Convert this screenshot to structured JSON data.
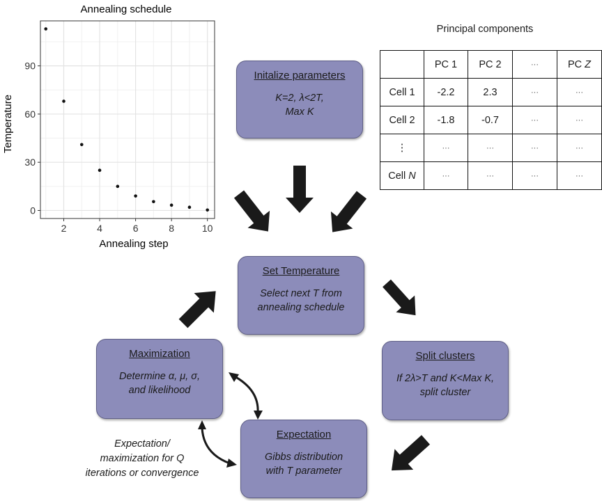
{
  "chart_data": {
    "type": "scatter",
    "title": "Annealing schedule",
    "xlabel": "Annealing step",
    "ylabel": "Temperature",
    "x": [
      1,
      2,
      3,
      4,
      5,
      6,
      7,
      8,
      9,
      10
    ],
    "y": [
      113,
      68,
      41,
      25,
      15,
      9,
      5.5,
      3.3,
      2,
      0.3
    ],
    "xlim": [
      0.7,
      10.4
    ],
    "ylim": [
      -5,
      118
    ],
    "xticks": [
      2,
      4,
      6,
      8,
      10
    ],
    "yticks": [
      0,
      30,
      60,
      90
    ],
    "grid": true,
    "point_color": "#111111"
  },
  "boxes": {
    "init": {
      "title": "Initalize parameters",
      "body": "K=2, λ<2T,\nMax K"
    },
    "set_temperature": {
      "title": "Set Temperature",
      "body": "Select next T from\nannealing schedule"
    },
    "split": {
      "title": "Split clusters",
      "body": "If 2λ>T and K<Max K,\nsplit cluster"
    },
    "expectation": {
      "title": "Expectation",
      "body": "Gibbs distribution\nwith T parameter"
    },
    "maximization": {
      "title": "Maximization",
      "body": "Determine α, μ, σ,\nand likelihood"
    }
  },
  "em_note": "Expectation/\nmaximization for Q\niterations or convergence",
  "table": {
    "title": "Principal components",
    "header": [
      "",
      "PC 1",
      "PC 2",
      "···",
      "PC Z"
    ],
    "rows": [
      [
        "Cell 1",
        "-2.2",
        "2.3",
        "···",
        "···"
      ],
      [
        "Cell 2",
        "-1.8",
        "-0.7",
        "···",
        "···"
      ],
      [
        "⋮",
        "···",
        "···",
        "···",
        "···"
      ],
      [
        "Cell N",
        "···",
        "···",
        "···",
        "···"
      ]
    ]
  },
  "colors": {
    "box_fill": "#8c8cba",
    "box_border": "#5e5e86",
    "arrow": "#1a1a1a"
  }
}
